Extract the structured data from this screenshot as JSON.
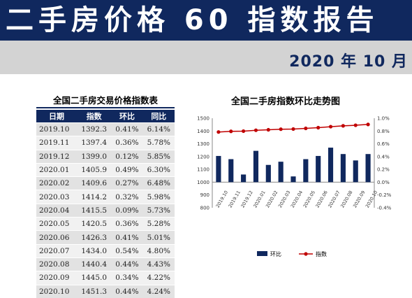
{
  "header": {
    "title": "二手房价格 60 指数报告",
    "date": "2020 年 10 月"
  },
  "table": {
    "title": "全国二手房交易价格指数表",
    "columns": [
      "日期",
      "指数",
      "环比",
      "同比"
    ],
    "rows": [
      [
        "2019.10",
        "1392.3",
        "0.41%",
        "6.14%"
      ],
      [
        "2019.11",
        "1397.4",
        "0.36%",
        "5.78%"
      ],
      [
        "2019.12",
        "1399.0",
        "0.12%",
        "5.85%"
      ],
      [
        "2020.01",
        "1405.9",
        "0.49%",
        "6.30%"
      ],
      [
        "2020.02",
        "1409.6",
        "0.27%",
        "6.48%"
      ],
      [
        "2020.03",
        "1414.2",
        "0.32%",
        "5.98%"
      ],
      [
        "2020.04",
        "1415.5",
        "0.09%",
        "5.73%"
      ],
      [
        "2020.05",
        "1420.5",
        "0.36%",
        "5.28%"
      ],
      [
        "2020.06",
        "1426.3",
        "0.41%",
        "5.01%"
      ],
      [
        "2020.07",
        "1434.0",
        "0.54%",
        "4.80%"
      ],
      [
        "2020.08",
        "1440.4",
        "0.44%",
        "4.43%"
      ],
      [
        "2020.09",
        "1445.0",
        "0.34%",
        "4.22%"
      ],
      [
        "2020.10",
        "1451.3",
        "0.44%",
        "4.24%"
      ]
    ]
  },
  "colors": {
    "header_bg": "#10285e",
    "bar": "#10285e",
    "line": "#c00000",
    "date_bar": "#d3d3d3"
  },
  "chart_data": {
    "type": "bar+line",
    "title": "全国二手房指数环比走势图",
    "categories": [
      "2019.10",
      "2019.11",
      "2019.12",
      "2020.01",
      "2020.02",
      "2020.03",
      "2020.04",
      "2020.05",
      "2020.06",
      "2020.07",
      "2020.08",
      "2020.09",
      "2020.10"
    ],
    "x_tick_labels": [
      "2019.10",
      "2019.11",
      "2019.12",
      "2020.01",
      "2020.02",
      "2020.03",
      "2020.04",
      "2020.05",
      "2020.06",
      "2020.07",
      "2020.08",
      "2020.09",
      "2020.10"
    ],
    "series": [
      {
        "name": "环比",
        "type": "bar",
        "axis": "right",
        "values": [
          0.41,
          0.36,
          0.12,
          0.49,
          0.27,
          0.32,
          0.09,
          0.36,
          0.41,
          0.54,
          0.44,
          0.34,
          0.44
        ]
      },
      {
        "name": "指数",
        "type": "line",
        "axis": "left",
        "values": [
          1392.3,
          1397.4,
          1399.0,
          1405.9,
          1409.6,
          1414.2,
          1415.5,
          1420.5,
          1426.3,
          1434.0,
          1440.4,
          1445.0,
          1451.3
        ]
      }
    ],
    "left_axis": {
      "min": 800,
      "max": 1500,
      "ticks": [
        "800",
        "900",
        "1000",
        "1100",
        "1200",
        "1300",
        "1400",
        "1500"
      ]
    },
    "right_axis": {
      "min": -0.4,
      "max": 1.0,
      "ticks": [
        "-0.4%",
        "-0.2%",
        "0.0%",
        "0.2%",
        "0.4%",
        "0.6%",
        "0.8%",
        "1.0%"
      ]
    },
    "grid": false,
    "legend": "bottom"
  }
}
